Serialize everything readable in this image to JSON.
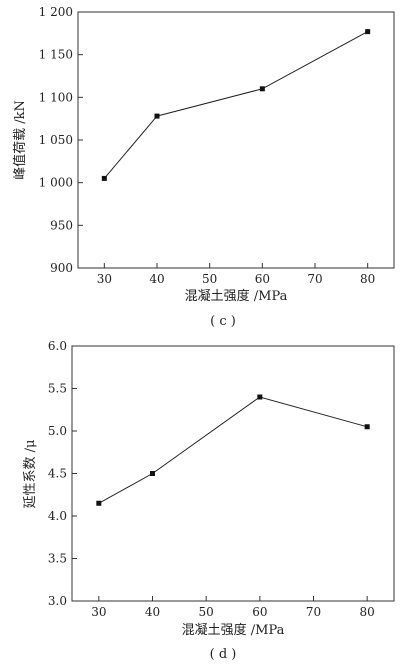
{
  "chart_data": [
    {
      "type": "line",
      "caption": "( c )",
      "xlabel": "混凝土强度 /MPa",
      "ylabel": "峰值荷载 /kN",
      "xlim": [
        25,
        85
      ],
      "ylim": [
        900,
        1200
      ],
      "x_ticks": [
        30,
        40,
        50,
        60,
        70,
        80
      ],
      "y_ticks": [
        900,
        950,
        1000,
        1050,
        1100,
        1150,
        1200
      ],
      "y_tick_labels": [
        "900",
        "950",
        "1 000",
        "1 050",
        "1 100",
        "1 150",
        "1 200"
      ],
      "grid": false,
      "marker": "square",
      "series": [
        {
          "x": [
            30,
            40,
            60,
            80
          ],
          "values": [
            1005,
            1078,
            1110,
            1177
          ]
        }
      ]
    },
    {
      "type": "line",
      "caption": "( d )",
      "xlabel": "混凝土强度 /MPa",
      "ylabel": "延性系数 /μ",
      "xlim": [
        25,
        85
      ],
      "ylim": [
        3.0,
        6.0
      ],
      "x_ticks": [
        30,
        40,
        50,
        60,
        70,
        80
      ],
      "y_ticks": [
        3.0,
        3.5,
        4.0,
        4.5,
        5.0,
        5.5,
        6.0
      ],
      "y_tick_labels": [
        "3.0",
        "3.5",
        "4.0",
        "4.5",
        "5.0",
        "5.5",
        "6.0"
      ],
      "grid": false,
      "marker": "square",
      "series": [
        {
          "x": [
            30,
            40,
            60,
            80
          ],
          "values": [
            4.15,
            4.5,
            5.4,
            5.05
          ]
        }
      ]
    }
  ]
}
